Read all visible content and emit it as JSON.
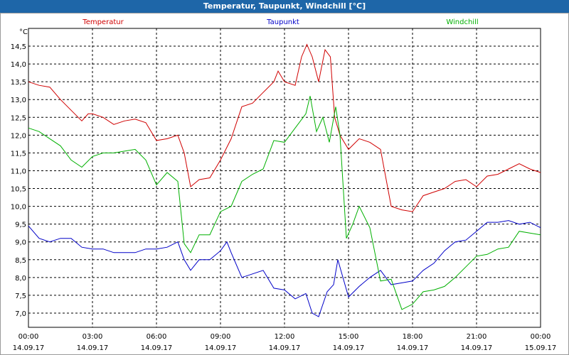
{
  "window": {
    "title": "Temperatur, Taupunkt, Windchill [°C]"
  },
  "chart_data": {
    "type": "line",
    "title": "Temperatur, Taupunkt, Windchill [°C]",
    "yunit": "°C",
    "ylim": [
      6.6,
      15.0
    ],
    "yticks": [
      "14,5",
      "14,0",
      "13,5",
      "13,0",
      "12,5",
      "12,0",
      "11,5",
      "11,0",
      "10,5",
      "10,0",
      "9,5",
      "9,0",
      "8,5",
      "8,0",
      "7,5",
      "7,0"
    ],
    "ytick_values": [
      14.5,
      14.0,
      13.5,
      13.0,
      12.5,
      12.0,
      11.5,
      11.0,
      10.5,
      10.0,
      9.5,
      9.0,
      8.5,
      8.0,
      7.5,
      7.0
    ],
    "xlim": [
      0,
      24
    ],
    "xticks": [
      {
        "h": 0,
        "time": "00:00",
        "date": "14.09.17"
      },
      {
        "h": 3,
        "time": "03:00",
        "date": "14.09.17"
      },
      {
        "h": 6,
        "time": "06:00",
        "date": "14.09.17"
      },
      {
        "h": 9,
        "time": "09:00",
        "date": "14.09.17"
      },
      {
        "h": 12,
        "time": "12:00",
        "date": "14.09.17"
      },
      {
        "h": 15,
        "time": "15:00",
        "date": "14.09.17"
      },
      {
        "h": 18,
        "time": "18:00",
        "date": "14.09.17"
      },
      {
        "h": 21,
        "time": "21:00",
        "date": "14.09.17"
      },
      {
        "h": 24,
        "time": "00:00",
        "date": "15.09.17"
      }
    ],
    "grid": true,
    "legend_position": "top",
    "series": [
      {
        "name": "Temperatur",
        "color": "#d00000",
        "x": [
          0,
          0.5,
          1,
          1.5,
          2,
          2.5,
          2.8,
          3,
          3.5,
          4,
          4.5,
          5,
          5.5,
          6,
          6.5,
          7,
          7.3,
          7.6,
          8,
          8.5,
          9,
          9.5,
          10,
          10.5,
          11,
          11.5,
          11.7,
          12,
          12.5,
          12.8,
          13.05,
          13.3,
          13.6,
          13.9,
          14.15,
          14.35,
          14.6,
          15,
          15.5,
          16,
          16.5,
          17,
          17.5,
          18,
          18.5,
          19,
          19.5,
          20,
          20.5,
          21,
          21.5,
          22,
          22.5,
          23,
          23.5,
          24
        ],
        "y": [
          13.5,
          13.4,
          13.35,
          13.0,
          12.7,
          12.4,
          12.6,
          12.6,
          12.5,
          12.3,
          12.4,
          12.45,
          12.35,
          11.85,
          11.9,
          12.0,
          11.5,
          10.55,
          10.75,
          10.8,
          11.3,
          11.9,
          12.8,
          12.9,
          13.2,
          13.5,
          13.8,
          13.5,
          13.4,
          14.2,
          14.55,
          14.2,
          13.5,
          14.4,
          14.2,
          12.5,
          12.0,
          11.6,
          11.9,
          11.8,
          11.6,
          10.0,
          9.9,
          9.85,
          10.3,
          10.4,
          10.5,
          10.7,
          10.75,
          10.55,
          10.85,
          10.9,
          11.05,
          11.2,
          11.05,
          10.95
        ]
      },
      {
        "name": "Taupunkt",
        "color": "#0000c8",
        "x": [
          0,
          0.5,
          1,
          1.5,
          2,
          2.5,
          3,
          3.5,
          4,
          4.5,
          5,
          5.5,
          6,
          6.5,
          7,
          7.3,
          7.6,
          8,
          8.5,
          9,
          9.3,
          9.5,
          10,
          10.5,
          11,
          11.5,
          12,
          12.5,
          13,
          13.3,
          13.6,
          14,
          14.3,
          14.5,
          15,
          15.5,
          16,
          16.5,
          17,
          17.5,
          18,
          18.5,
          19,
          19.5,
          20,
          20.5,
          21,
          21.5,
          22,
          22.5,
          23,
          23.5,
          24
        ],
        "y": [
          9.45,
          9.1,
          9.0,
          9.1,
          9.1,
          8.85,
          8.8,
          8.8,
          8.7,
          8.7,
          8.7,
          8.8,
          8.8,
          8.85,
          9.0,
          8.5,
          8.2,
          8.5,
          8.5,
          8.75,
          9.0,
          8.7,
          8.0,
          8.1,
          8.2,
          7.7,
          7.65,
          7.4,
          7.55,
          7.0,
          6.9,
          7.6,
          7.8,
          8.5,
          7.45,
          7.75,
          8.0,
          8.2,
          7.8,
          7.85,
          7.9,
          8.2,
          8.4,
          8.75,
          9.0,
          9.05,
          9.3,
          9.55,
          9.55,
          9.6,
          9.5,
          9.55,
          9.4
        ]
      },
      {
        "name": "Windchill",
        "color": "#00b000",
        "x": [
          0,
          0.5,
          1,
          1.5,
          2,
          2.5,
          3,
          3.5,
          4,
          4.5,
          5,
          5.5,
          6,
          6.5,
          7,
          7.3,
          7.6,
          8,
          8.5,
          9,
          9.5,
          10,
          10.5,
          11,
          11.5,
          12,
          12.5,
          13,
          13.2,
          13.5,
          13.8,
          14.1,
          14.4,
          14.6,
          14.9,
          15.2,
          15.5,
          16,
          16.5,
          17,
          17.5,
          18,
          18.5,
          19,
          19.5,
          20,
          20.5,
          21,
          21.5,
          22,
          22.5,
          23,
          23.5,
          24
        ],
        "y": [
          12.2,
          12.1,
          11.9,
          11.7,
          11.3,
          11.1,
          11.4,
          11.5,
          11.5,
          11.55,
          11.6,
          11.3,
          10.6,
          10.95,
          10.7,
          8.95,
          8.7,
          9.2,
          9.2,
          9.85,
          10.0,
          10.7,
          10.9,
          11.05,
          11.85,
          11.8,
          12.2,
          12.6,
          13.1,
          12.1,
          12.5,
          11.8,
          12.8,
          12.0,
          9.1,
          9.5,
          10.0,
          9.4,
          7.9,
          7.95,
          7.1,
          7.25,
          7.6,
          7.65,
          7.75,
          8.0,
          8.3,
          8.6,
          8.65,
          8.8,
          8.85,
          9.3,
          9.25,
          9.2
        ]
      }
    ]
  }
}
